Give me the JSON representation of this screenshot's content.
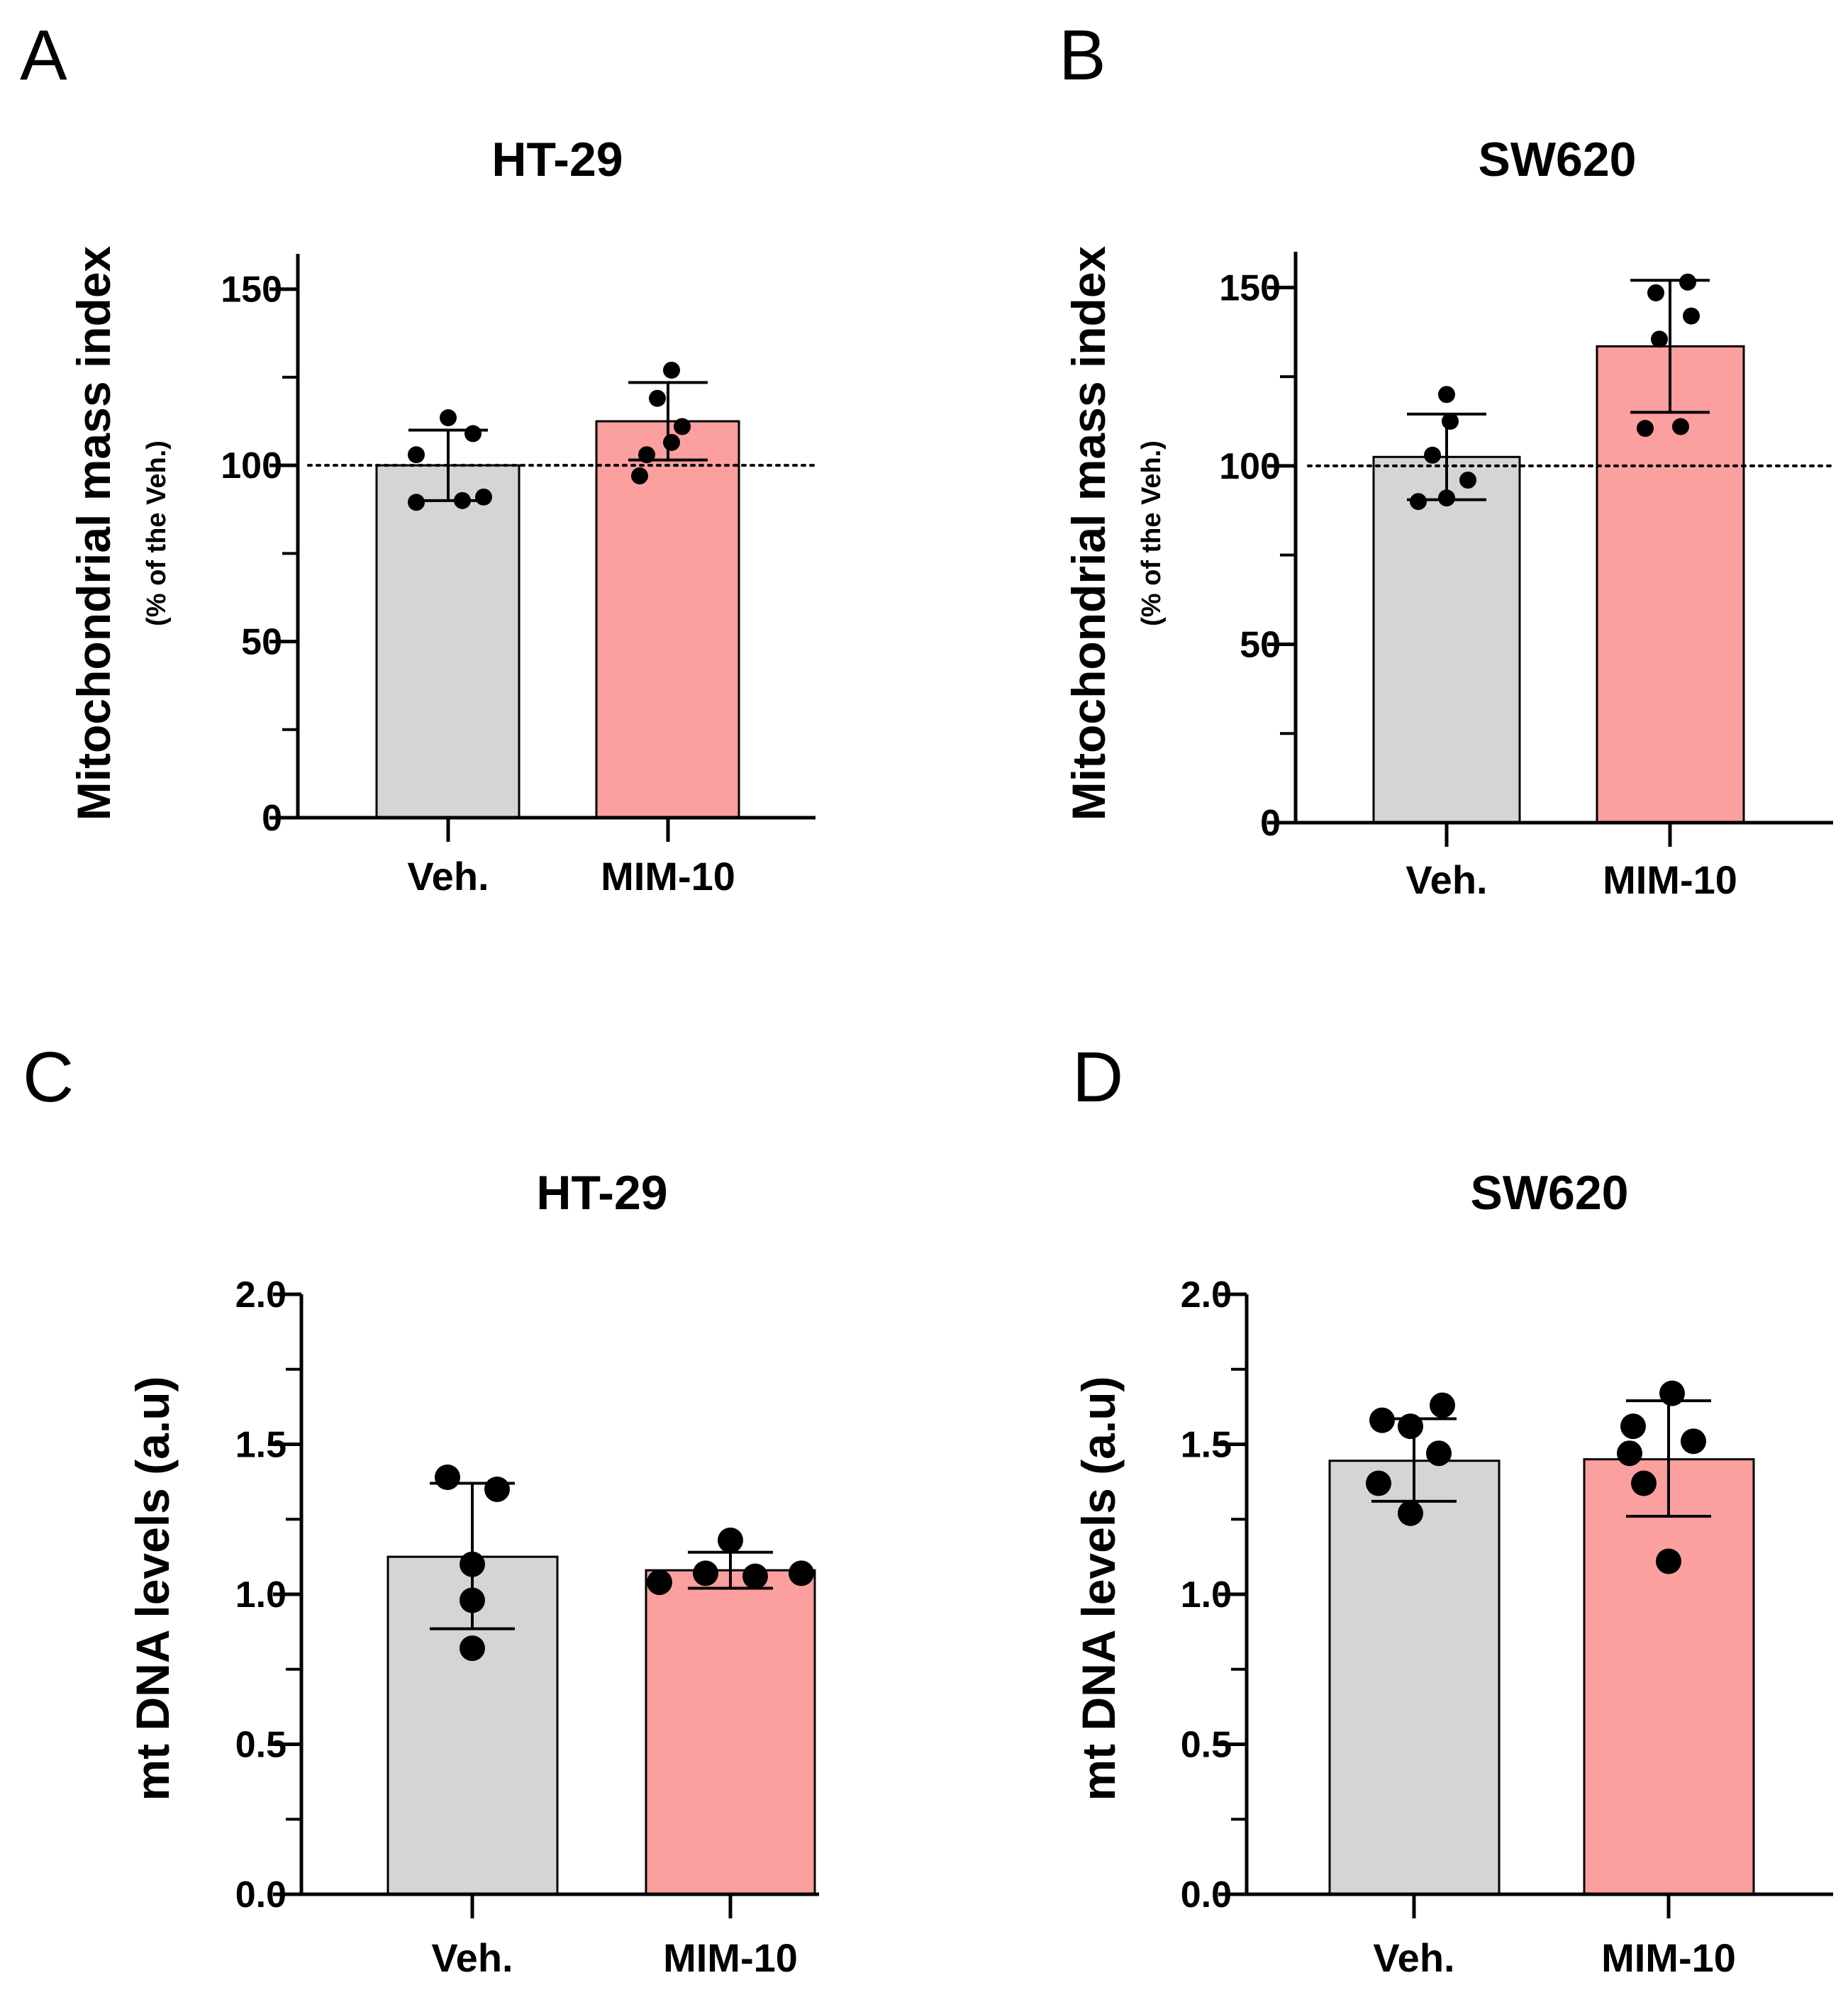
{
  "figure": {
    "colors": {
      "veh": "#d5d5d5",
      "mim": "#fc9f9f",
      "axis": "#000000",
      "point": "#000000"
    }
  },
  "chart_data": [
    {
      "panel": "A",
      "type": "bar",
      "title": "HT-29",
      "ylabel": "Mitochondrial mass index",
      "ylabel_sub": "(% of the Veh.)",
      "xlabel": "",
      "categories": [
        "Veh.",
        "MIM-10"
      ],
      "values": [
        100,
        112.5
      ],
      "error": [
        [
          90,
          110
        ],
        [
          101.5,
          123.5
        ]
      ],
      "points": [
        [
          89.5,
          90,
          91,
          103,
          109,
          113.5
        ],
        [
          97,
          103,
          106.5,
          111,
          119,
          127
        ]
      ],
      "reference_line": 100,
      "ylim": [
        0,
        160
      ],
      "yticks": [
        0,
        50,
        100,
        150
      ],
      "ytick_labels": [
        "0",
        "50",
        "100",
        "150"
      ],
      "minor_step": 25
    },
    {
      "panel": "B",
      "type": "bar",
      "title": "SW620",
      "ylabel": "Mitochondrial mass index",
      "ylabel_sub": "(% of the Veh.)",
      "xlabel": "",
      "categories": [
        "Veh.",
        "MIM-10"
      ],
      "values": [
        102.5,
        133.5
      ],
      "error": [
        [
          90.5,
          114.5
        ],
        [
          115,
          152
        ]
      ],
      "points": [
        [
          90,
          91,
          96,
          103,
          112.5,
          120
        ],
        [
          110.5,
          111,
          135.5,
          142,
          148.5,
          151.5
        ]
      ],
      "reference_line": 100,
      "ylim": [
        0,
        160
      ],
      "yticks": [
        0,
        50,
        100,
        150
      ],
      "ytick_labels": [
        "0",
        "50",
        "100",
        "150"
      ],
      "minor_step": 25
    },
    {
      "panel": "C",
      "type": "bar",
      "title": "HT-29",
      "ylabel": "mt DNA levels (a.u)",
      "ylabel_sub": "",
      "xlabel": "",
      "categories": [
        "Veh.",
        "MIM-10"
      ],
      "values": [
        1.125,
        1.08
      ],
      "error": [
        [
          0.885,
          1.37
        ],
        [
          1.02,
          1.14
        ]
      ],
      "points": [
        [
          0.82,
          0.98,
          1.1,
          1.35,
          1.39
        ],
        [
          1.04,
          1.06,
          1.07,
          1.07,
          1.18
        ]
      ],
      "reference_line": null,
      "ylim": [
        0,
        2
      ],
      "yticks": [
        0,
        0.5,
        1,
        1.5,
        2
      ],
      "ytick_labels": [
        "0.0",
        "0.5",
        "1.0",
        "1.5",
        "2.0"
      ],
      "minor_step": 0.25
    },
    {
      "panel": "D",
      "type": "bar",
      "title": "SW620",
      "ylabel": "mt DNA levels (a.u)",
      "ylabel_sub": "",
      "xlabel": "",
      "categories": [
        "Veh.",
        "MIM-10"
      ],
      "values": [
        1.445,
        1.45
      ],
      "error": [
        [
          1.31,
          1.585
        ],
        [
          1.26,
          1.645
        ]
      ],
      "points": [
        [
          1.27,
          1.37,
          1.47,
          1.56,
          1.58,
          1.63
        ],
        [
          1.11,
          1.37,
          1.47,
          1.51,
          1.56,
          1.67
        ]
      ],
      "reference_line": null,
      "ylim": [
        0,
        2
      ],
      "yticks": [
        0,
        0.5,
        1,
        1.5,
        2
      ],
      "ytick_labels": [
        "0.0",
        "0.5",
        "1.0",
        "1.5",
        "2.0"
      ],
      "minor_step": 0.25
    }
  ]
}
